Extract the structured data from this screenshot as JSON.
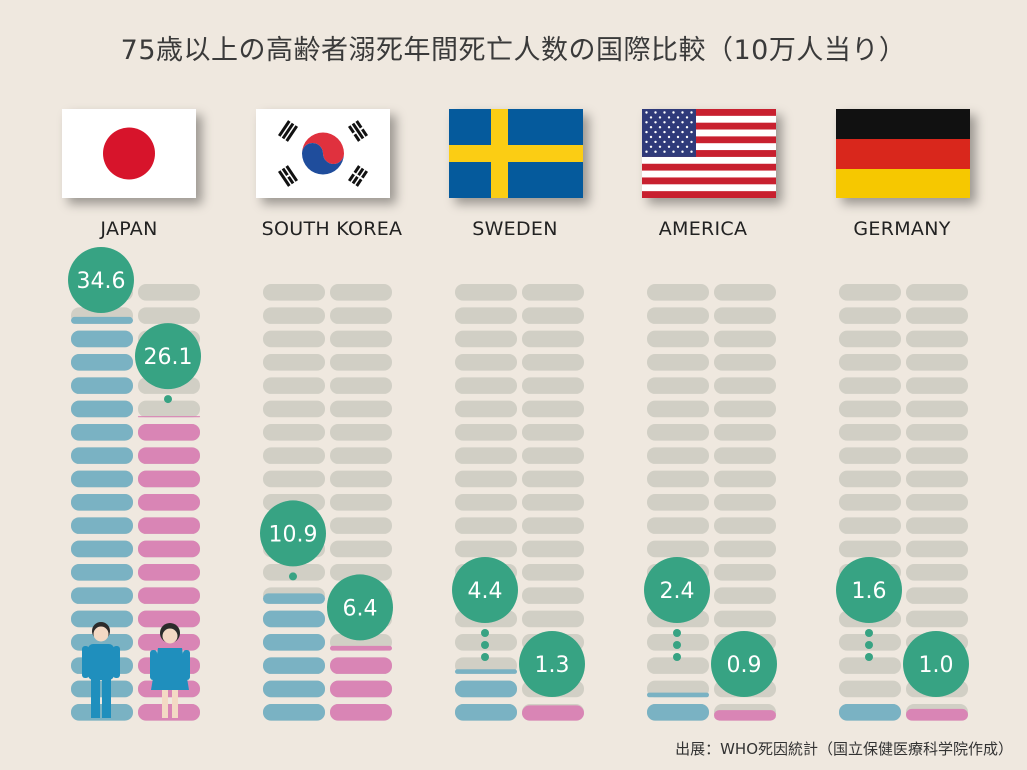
{
  "title": "75歳以上の高齢者溺死年間死亡人数の国際比較（10万人当り）",
  "source": "出展：WHO死因統計（国立保健医療科学院作成）",
  "colors": {
    "background": "#efe8df",
    "male": "#7ab2c3",
    "female": "#d985b5",
    "empty": "#d1cfc5",
    "bubble": "#37a383",
    "figure_male": "#1f8fbd",
    "figure_female": "#1f8fbd"
  },
  "countries": [
    {
      "name": "JAPAN",
      "flag": "japan-flag-icon"
    },
    {
      "name": "SOUTH KOREA",
      "flag": "south-korea-flag-icon"
    },
    {
      "name": "SWEDEN",
      "flag": "sweden-flag-icon"
    },
    {
      "name": "AMERICA",
      "flag": "usa-flag-icon"
    },
    {
      "name": "GERMANY",
      "flag": "germany-flag-icon"
    }
  ],
  "chart_data": {
    "type": "bar",
    "title": "75歳以上の高齢者溺死年間死亡人数の国際比較（10万人当り）",
    "categories": [
      "JAPAN",
      "SOUTH KOREA",
      "SWEDEN",
      "AMERICA",
      "GERMANY"
    ],
    "series": [
      {
        "name": "male",
        "values": [
          34.6,
          10.9,
          4.4,
          2.4,
          1.6
        ]
      },
      {
        "name": "female",
        "values": [
          26.1,
          6.4,
          1.3,
          0.9,
          1.0
        ]
      }
    ],
    "labels": {
      "male": [
        "34.6",
        "10.9",
        "4.4",
        "2.4",
        "1.6"
      ],
      "female": [
        "26.1",
        "6.4",
        "1.3",
        "0.9",
        "1.0"
      ]
    },
    "ylim": [
      0,
      40
    ]
  }
}
